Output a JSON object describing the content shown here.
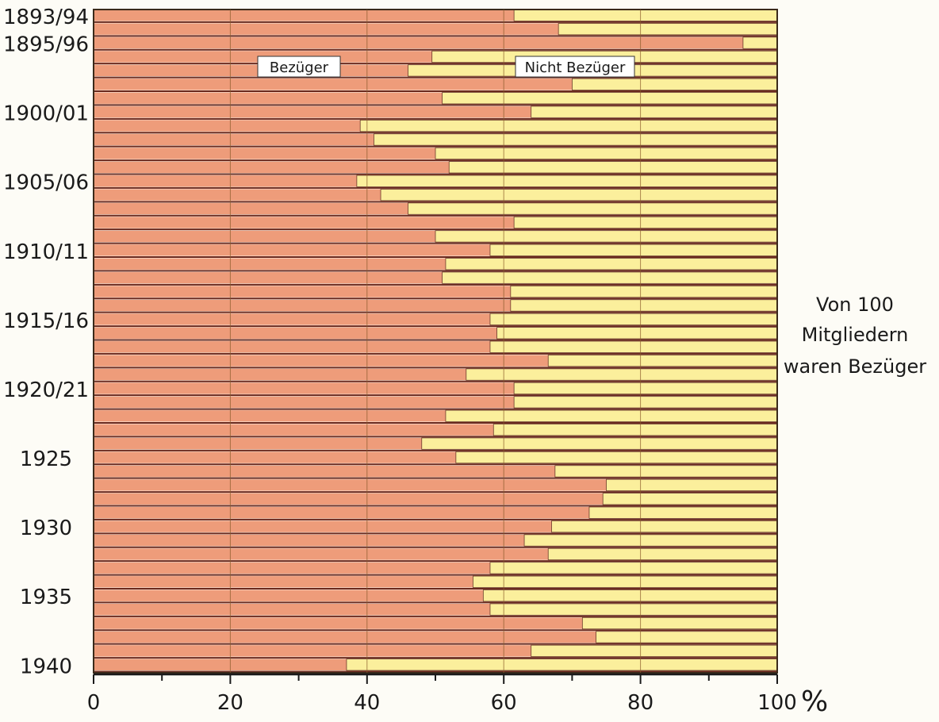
{
  "chart_data": {
    "type": "bar",
    "orientation": "horizontal-stacked-percent",
    "side_label": [
      "Von 100",
      "Mitgliedern",
      "waren Bezüger"
    ],
    "legend": {
      "bezueger": "Bezüger",
      "nicht": "Nicht Bezüger"
    },
    "series": [
      {
        "name": "Bezüger",
        "color": "#ee9c7a"
      },
      {
        "name": "Nicht Bezüger",
        "color": "#fbef9c"
      }
    ],
    "row_labels": [
      {
        "index": 0,
        "label": "1893/94"
      },
      {
        "index": 2,
        "label": "1895/96"
      },
      {
        "index": 7,
        "label": "1900/01"
      },
      {
        "index": 12,
        "label": "1905/06"
      },
      {
        "index": 17,
        "label": "1910/11"
      },
      {
        "index": 22,
        "label": "1915/16"
      },
      {
        "index": 27,
        "label": "1920/21"
      },
      {
        "index": 32,
        "label": "1925"
      },
      {
        "index": 37,
        "label": "1930"
      },
      {
        "index": 42,
        "label": "1935"
      },
      {
        "index": 47,
        "label": "1940"
      }
    ],
    "values": [
      61.5,
      68,
      95,
      49.5,
      46,
      70,
      51,
      64,
      39,
      41,
      50,
      52,
      38.5,
      42,
      46,
      61.5,
      50,
      58,
      51.5,
      51,
      61,
      61,
      58,
      59,
      58,
      66.5,
      54.5,
      61.5,
      61.5,
      51.5,
      58.5,
      48,
      53,
      67.5,
      75,
      74.5,
      72.5,
      67,
      63,
      66.5,
      58,
      55.5,
      57,
      58,
      71.5,
      73.5,
      64,
      37
    ],
    "x_ticks": [
      "0",
      "20",
      "40",
      "60",
      "80",
      "100"
    ],
    "x_unit": "%",
    "xlim": [
      0,
      100
    ]
  }
}
